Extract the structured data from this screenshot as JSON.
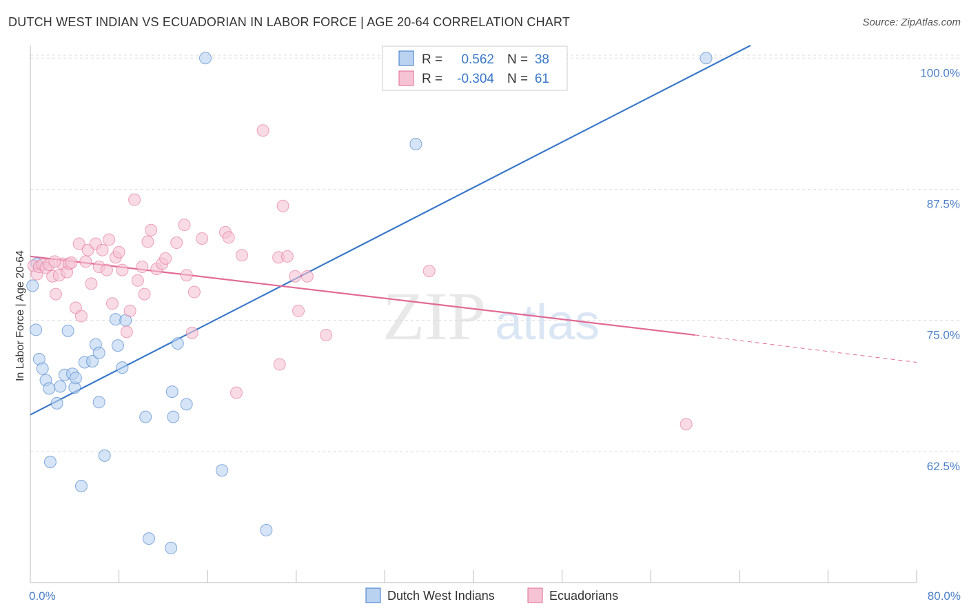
{
  "header": {
    "title": "DUTCH WEST INDIAN VS ECUADORIAN IN LABOR FORCE | AGE 20-64 CORRELATION CHART",
    "source": "Source: ZipAtlas.com"
  },
  "colors": {
    "blue": "#3a78c9",
    "blue_fill": "#b9d2f0",
    "pink": "#e26a94",
    "pink_fill": "#f5c3d3",
    "grid": "#dddddd",
    "tick_text": "#4a7fc8"
  },
  "watermark": {
    "zip": "ZIP",
    "atlas": "atlas"
  },
  "chart_data": {
    "type": "scatter",
    "title": "DUTCH WEST INDIAN VS ECUADORIAN IN LABOR FORCE | AGE 20-64 CORRELATION CHART",
    "xlabel": "",
    "ylabel": "In Labor Force | Age 20-64",
    "xlim": [
      0,
      80
    ],
    "ylim": [
      50,
      101.2
    ],
    "x_tick_labels": [
      {
        "value": 0,
        "label": "0.0%"
      },
      {
        "value": 80,
        "label": "80.0%"
      }
    ],
    "y_tick_labels": [
      {
        "value": 62.5,
        "label": "62.5%"
      },
      {
        "value": 75.0,
        "label": "75.0%"
      },
      {
        "value": 87.5,
        "label": "87.5%"
      },
      {
        "value": 100.0,
        "label": "100.0%"
      }
    ],
    "legend": {
      "position": "top-center",
      "rows": [
        {
          "r_label": "R =",
          "r_value": "0.562",
          "n_label": "N =",
          "n_value": "38"
        },
        {
          "r_label": "R =",
          "r_value": "-0.304",
          "n_label": "N =",
          "n_value": "61"
        }
      ]
    },
    "bottom_legend": [
      "Dutch West Indians",
      "Ecuadorians"
    ],
    "series": [
      {
        "name": "Dutch West Indians",
        "color": "#3a78c9",
        "r": 0.562,
        "n": 38,
        "trend": {
          "x0": 0,
          "y0": 66.0,
          "x1": 65,
          "y1": 101.2
        },
        "points": [
          [
            0.2,
            78.3
          ],
          [
            0.5,
            74.1
          ],
          [
            0.8,
            71.3
          ],
          [
            1.1,
            70.4
          ],
          [
            1.4,
            69.3
          ],
          [
            1.7,
            68.5
          ],
          [
            2.4,
            67.1
          ],
          [
            2.7,
            68.7
          ],
          [
            3.1,
            69.8
          ],
          [
            3.4,
            74.0
          ],
          [
            3.8,
            69.9
          ],
          [
            4.0,
            68.6
          ],
          [
            4.1,
            69.5
          ],
          [
            4.9,
            71.0
          ],
          [
            5.6,
            71.1
          ],
          [
            5.9,
            72.7
          ],
          [
            6.2,
            71.9
          ],
          [
            6.2,
            67.2
          ],
          [
            6.7,
            62.1
          ],
          [
            7.7,
            75.1
          ],
          [
            7.9,
            72.6
          ],
          [
            8.3,
            70.5
          ],
          [
            8.6,
            75.0
          ],
          [
            10.4,
            65.8
          ],
          [
            10.7,
            54.2
          ],
          [
            12.7,
            53.3
          ],
          [
            12.9,
            65.8
          ],
          [
            12.8,
            68.2
          ],
          [
            13.3,
            72.8
          ],
          [
            14.1,
            67.0
          ],
          [
            15.8,
            100.0
          ],
          [
            17.3,
            60.7
          ],
          [
            21.3,
            55.0
          ],
          [
            34.8,
            91.8
          ],
          [
            61.0,
            100.0
          ],
          [
            1.8,
            61.5
          ],
          [
            4.6,
            59.2
          ],
          [
            0.6,
            80.4
          ]
        ]
      },
      {
        "name": "Ecuadorians",
        "color": "#e26a94",
        "r": -0.304,
        "n": 61,
        "trend": {
          "x0": 0,
          "y0": 81.1,
          "x1": 60,
          "y1": 73.6
        },
        "trend_dashed": {
          "x0": 60,
          "y0": 73.6,
          "x1": 80,
          "y1": 71.0
        },
        "points": [
          [
            0.3,
            80.2
          ],
          [
            0.6,
            79.4
          ],
          [
            0.8,
            80.1
          ],
          [
            1.1,
            80.3
          ],
          [
            1.4,
            80.0
          ],
          [
            1.7,
            80.3
          ],
          [
            2.0,
            79.2
          ],
          [
            2.3,
            77.5
          ],
          [
            2.6,
            79.3
          ],
          [
            2.9,
            80.4
          ],
          [
            3.3,
            79.6
          ],
          [
            3.5,
            80.4
          ],
          [
            3.7,
            80.5
          ],
          [
            4.1,
            76.2
          ],
          [
            4.4,
            82.3
          ],
          [
            4.6,
            75.4
          ],
          [
            5.0,
            80.6
          ],
          [
            5.2,
            81.7
          ],
          [
            5.5,
            78.5
          ],
          [
            5.9,
            82.3
          ],
          [
            6.2,
            80.1
          ],
          [
            6.5,
            81.7
          ],
          [
            6.9,
            79.8
          ],
          [
            7.1,
            82.7
          ],
          [
            7.4,
            76.6
          ],
          [
            7.7,
            81.0
          ],
          [
            8.0,
            81.5
          ],
          [
            8.3,
            79.8
          ],
          [
            8.7,
            73.9
          ],
          [
            9.0,
            75.9
          ],
          [
            9.4,
            86.5
          ],
          [
            9.7,
            78.8
          ],
          [
            10.1,
            80.1
          ],
          [
            10.3,
            77.5
          ],
          [
            10.6,
            82.5
          ],
          [
            10.9,
            83.6
          ],
          [
            11.4,
            79.9
          ],
          [
            11.9,
            80.4
          ],
          [
            12.2,
            80.9
          ],
          [
            13.2,
            82.4
          ],
          [
            13.9,
            84.1
          ],
          [
            14.1,
            79.3
          ],
          [
            14.6,
            73.8
          ],
          [
            14.8,
            77.7
          ],
          [
            15.5,
            82.8
          ],
          [
            17.6,
            83.4
          ],
          [
            17.9,
            82.9
          ],
          [
            18.6,
            68.1
          ],
          [
            19.1,
            81.2
          ],
          [
            21.0,
            93.1
          ],
          [
            22.4,
            81.0
          ],
          [
            22.5,
            70.8
          ],
          [
            22.8,
            85.9
          ],
          [
            23.2,
            81.1
          ],
          [
            23.9,
            79.2
          ],
          [
            24.2,
            75.9
          ],
          [
            25.0,
            79.2
          ],
          [
            26.7,
            73.6
          ],
          [
            36.0,
            79.7
          ],
          [
            59.2,
            65.1
          ],
          [
            2.2,
            80.6
          ]
        ]
      }
    ]
  }
}
